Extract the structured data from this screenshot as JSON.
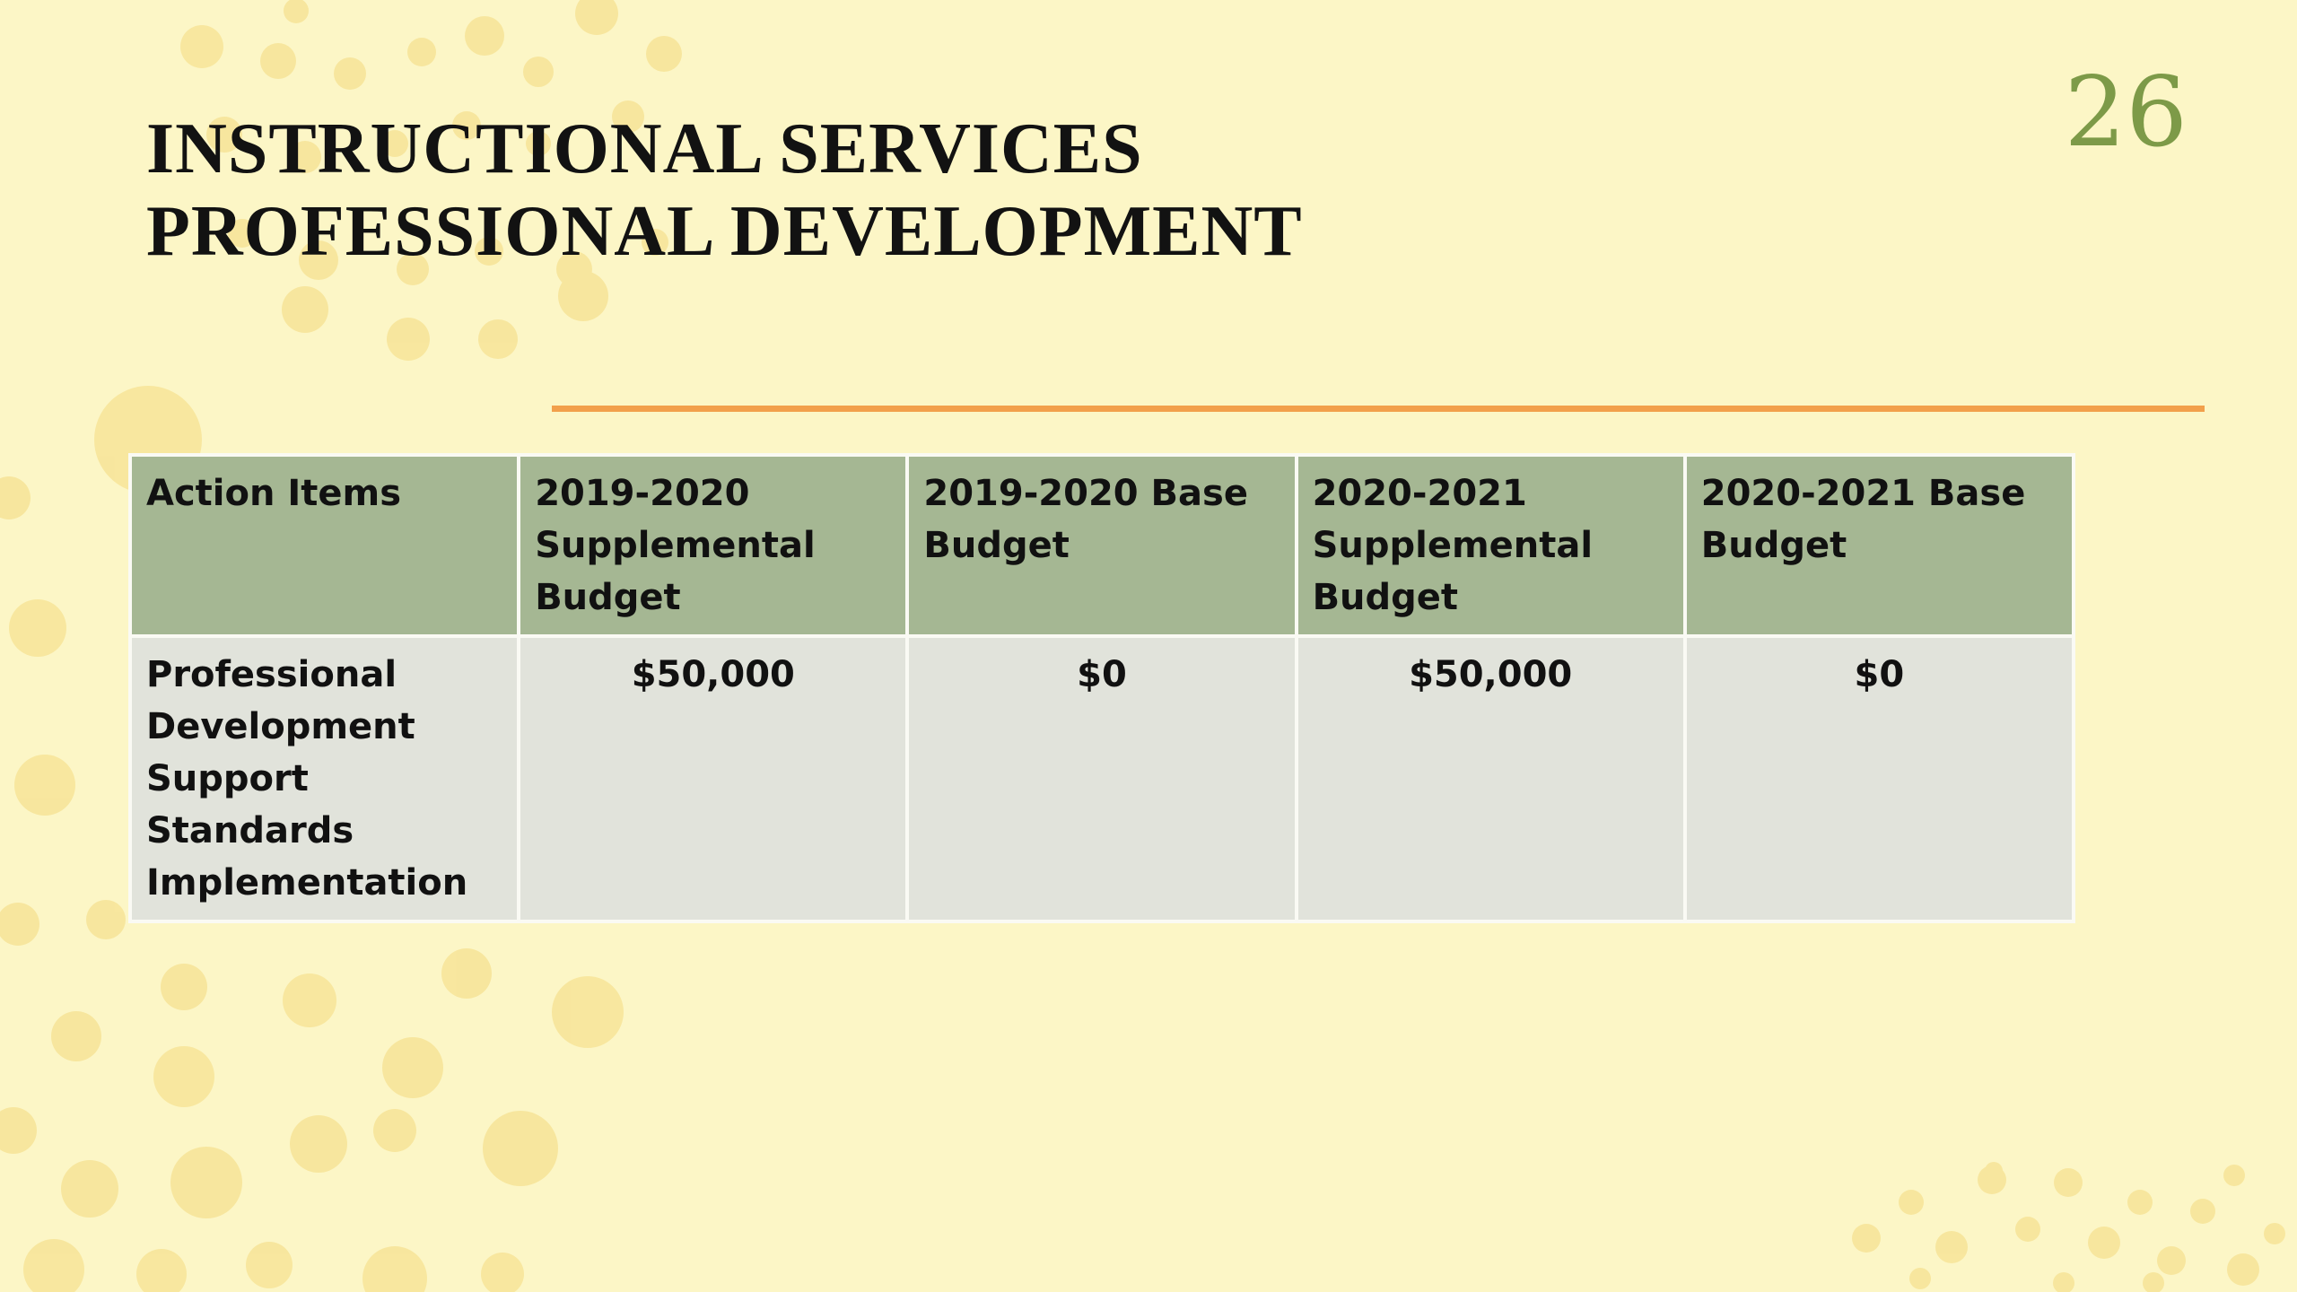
{
  "slide": {
    "number": "26",
    "title_line1": "INSTRUCTIONAL SERVICES",
    "title_line2": "PROFESSIONAL DEVELOPMENT"
  },
  "table": {
    "headers": [
      "Action Items",
      "2019-2020 Supplemental Budget",
      "2019-2020 Base Budget",
      "2020-2021 Supplemental Budget",
      "2020-2021 Base Budget"
    ],
    "rows": [
      {
        "action_item": "Professional Development Support Standards Implementation",
        "supplemental_2019_2020": "$50,000",
        "base_2019_2020": "$0",
        "supplemental_2020_2021": "$50,000",
        "base_2020_2021": "$0"
      }
    ]
  },
  "colors": {
    "background": "#fcf6c6",
    "header_fill": "#a5b793",
    "body_fill": "#e1e3db",
    "accent_rule": "#f2a04b",
    "slide_number": "#7d9a48",
    "dots": "#f7e59a"
  }
}
